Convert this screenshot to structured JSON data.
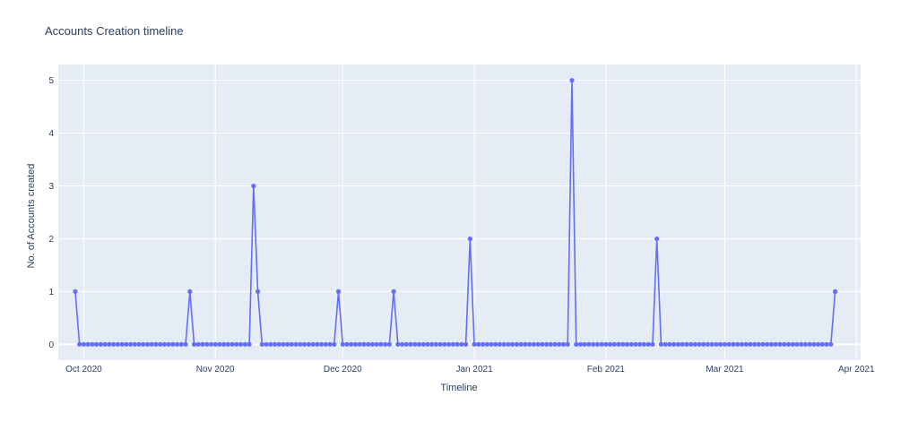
{
  "chart_data": {
    "type": "line",
    "title": "Accounts Creation timeline",
    "xlabel": "Timeline",
    "ylabel": "No. of Accounts created",
    "xlim": [
      "2020-09-25",
      "2021-04-02"
    ],
    "ylim": [
      -0.3,
      5.3
    ],
    "grid": true,
    "legend": "none",
    "x_ticks": [
      {
        "date": "2020-10-01",
        "label": "Oct 2020"
      },
      {
        "date": "2020-11-01",
        "label": "Nov 2020"
      },
      {
        "date": "2020-12-01",
        "label": "Dec 2020"
      },
      {
        "date": "2021-01-01",
        "label": "Jan 2021"
      },
      {
        "date": "2021-02-01",
        "label": "Feb 2021"
      },
      {
        "date": "2021-03-01",
        "label": "Mar 2021"
      },
      {
        "date": "2021-04-01",
        "label": "Apr 2021"
      }
    ],
    "y_ticks": [
      0,
      1,
      2,
      3,
      4,
      5
    ],
    "start_date": "2020-09-29",
    "end_date": "2021-03-27",
    "peaks": [
      {
        "date": "2020-09-29",
        "value": 1
      },
      {
        "date": "2020-10-26",
        "value": 1
      },
      {
        "date": "2020-11-10",
        "value": 3
      },
      {
        "date": "2020-11-11",
        "value": 1
      },
      {
        "date": "2020-11-30",
        "value": 1
      },
      {
        "date": "2020-12-13",
        "value": 1
      },
      {
        "date": "2020-12-31",
        "value": 2
      },
      {
        "date": "2021-01-24",
        "value": 5
      },
      {
        "date": "2021-02-13",
        "value": 2
      },
      {
        "date": "2021-03-27",
        "value": 1
      }
    ],
    "default_value": 0,
    "colors": {
      "line": "#636efa",
      "plot_bg": "#e5ecf6",
      "grid": "#ffffff",
      "text": "#2a3f5f"
    }
  }
}
